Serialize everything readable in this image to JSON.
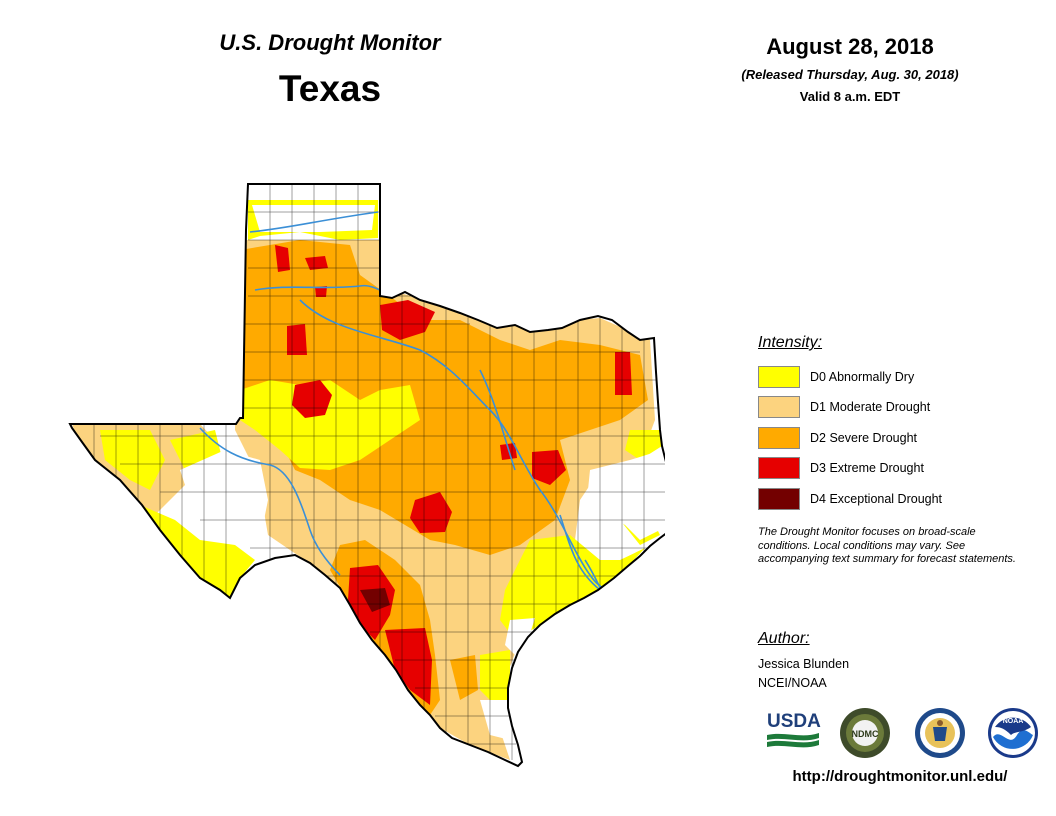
{
  "header": {
    "monitor_title": "U.S. Drought Monitor",
    "state_title": "Texas",
    "date": "August 28, 2018",
    "released": "(Released Thursday, Aug. 30, 2018)",
    "valid": "Valid 8 a.m. EDT"
  },
  "legend": {
    "heading": "Intensity:",
    "items": [
      {
        "label": "D0 Abnormally Dry",
        "color": "#ffff00"
      },
      {
        "label": "D1 Moderate Drought",
        "color": "#fcd37f"
      },
      {
        "label": "D2 Severe Drought",
        "color": "#ffaa00"
      },
      {
        "label": "D3 Extreme Drought",
        "color": "#e60000"
      },
      {
        "label": "D4 Exceptional Drought",
        "color": "#730000"
      }
    ]
  },
  "note": "The Drought Monitor focuses on broad-scale conditions. Local conditions may vary. See accompanying text summary for forecast statements.",
  "author": {
    "heading": "Author:",
    "name": "Jessica Blunden",
    "org": "NCEI/NOAA"
  },
  "logos": [
    {
      "name": "usda-logo",
      "text": "USDA"
    },
    {
      "name": "ndmc-logo",
      "text": "NDMC"
    },
    {
      "name": "doc-seal",
      "text": ""
    },
    {
      "name": "noaa-logo",
      "text": "NOAA"
    }
  ],
  "url": "http://droughtmonitor.unl.edu/",
  "map": {
    "colors": {
      "none": "#ffffff",
      "d0": "#ffff00",
      "d1": "#fcd37f",
      "d2": "#ffaa00",
      "d3": "#e60000",
      "d4": "#730000",
      "river": "#3b8fd6",
      "county": "#000000"
    }
  }
}
